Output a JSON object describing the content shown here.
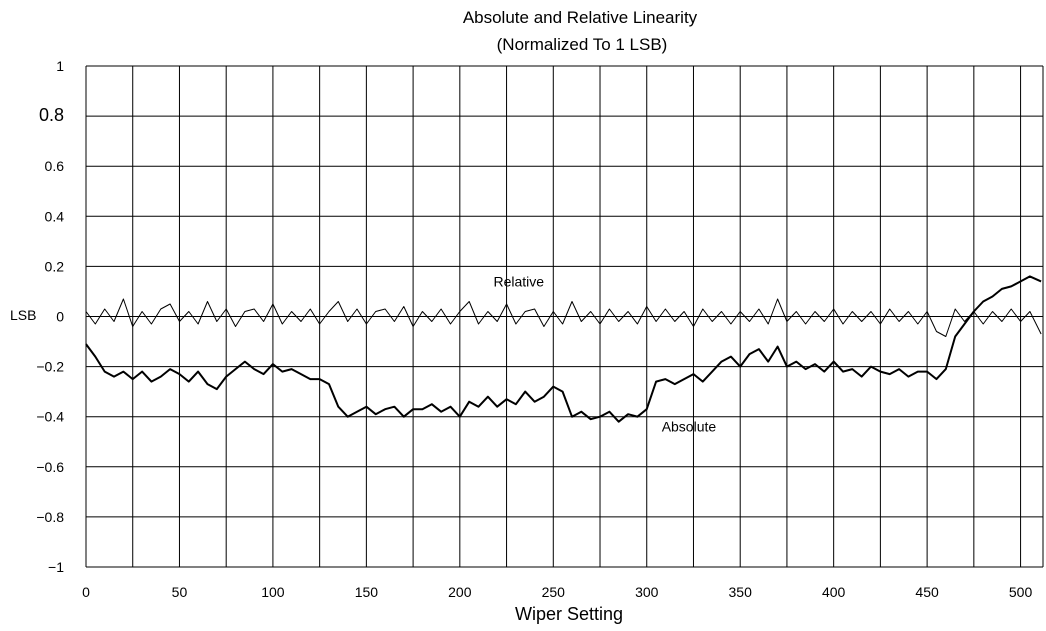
{
  "chart_data": {
    "type": "line",
    "title": "Absolute and Relative Linearity",
    "subtitle": "(Normalized To 1 LSB)",
    "xlabel": "Wiper Setting",
    "ylabel": "LSB",
    "xlim": [
      0,
      512
    ],
    "ylim": [
      -1,
      1
    ],
    "x_ticks": [
      0,
      50,
      100,
      150,
      200,
      250,
      300,
      350,
      400,
      450,
      500
    ],
    "y_ticks": [
      -1,
      -0.8,
      -0.6,
      -0.4,
      -0.2,
      0,
      0.2,
      0.4,
      0.6,
      0.8,
      1
    ],
    "y_tick_labels": [
      "−1",
      "−0.8",
      "−0.6",
      "−0.4",
      "−0.2",
      "0",
      "0.2",
      "0.4",
      "0.6",
      "0.8",
      "1"
    ],
    "x_tick_labels": [
      "0",
      "50",
      "100",
      "150",
      "200",
      "250",
      "300",
      "350",
      "400",
      "450",
      "500"
    ],
    "grid": true,
    "annotations": [
      {
        "text": "Relative",
        "x": 218,
        "y": 0.12
      },
      {
        "text": "Absolute",
        "x": 308,
        "y": -0.46
      }
    ],
    "series": [
      {
        "name": "Absolute",
        "x": [
          0,
          5,
          10,
          15,
          20,
          25,
          30,
          35,
          40,
          45,
          50,
          55,
          60,
          65,
          70,
          75,
          80,
          85,
          90,
          95,
          100,
          105,
          110,
          115,
          120,
          125,
          130,
          135,
          140,
          145,
          150,
          155,
          160,
          165,
          170,
          175,
          180,
          185,
          190,
          195,
          200,
          205,
          210,
          215,
          220,
          225,
          230,
          235,
          240,
          245,
          250,
          255,
          260,
          265,
          270,
          275,
          280,
          285,
          290,
          295,
          300,
          305,
          310,
          315,
          320,
          325,
          330,
          335,
          340,
          345,
          350,
          355,
          360,
          365,
          370,
          375,
          380,
          385,
          390,
          395,
          400,
          405,
          410,
          415,
          420,
          425,
          430,
          435,
          440,
          445,
          450,
          455,
          460,
          465,
          470,
          475,
          480,
          485,
          490,
          495,
          500,
          505,
          511
        ],
        "y": [
          -0.11,
          -0.16,
          -0.22,
          -0.24,
          -0.22,
          -0.25,
          -0.22,
          -0.26,
          -0.24,
          -0.21,
          -0.23,
          -0.26,
          -0.22,
          -0.27,
          -0.29,
          -0.24,
          -0.21,
          -0.18,
          -0.21,
          -0.23,
          -0.19,
          -0.22,
          -0.21,
          -0.23,
          -0.25,
          -0.25,
          -0.27,
          -0.36,
          -0.4,
          -0.38,
          -0.36,
          -0.39,
          -0.37,
          -0.36,
          -0.4,
          -0.37,
          -0.37,
          -0.35,
          -0.38,
          -0.36,
          -0.4,
          -0.34,
          -0.36,
          -0.32,
          -0.36,
          -0.33,
          -0.35,
          -0.3,
          -0.34,
          -0.32,
          -0.28,
          -0.3,
          -0.4,
          -0.38,
          -0.41,
          -0.4,
          -0.38,
          -0.42,
          -0.39,
          -0.4,
          -0.37,
          -0.26,
          -0.25,
          -0.27,
          -0.25,
          -0.23,
          -0.26,
          -0.22,
          -0.18,
          -0.16,
          -0.2,
          -0.15,
          -0.13,
          -0.18,
          -0.12,
          -0.2,
          -0.18,
          -0.21,
          -0.19,
          -0.22,
          -0.18,
          -0.22,
          -0.21,
          -0.24,
          -0.2,
          -0.22,
          -0.23,
          -0.21,
          -0.24,
          -0.22,
          -0.22,
          -0.25,
          -0.21,
          -0.08,
          -0.03,
          0.02,
          0.06,
          0.08,
          0.11,
          0.12,
          0.14,
          0.16,
          0.14
        ]
      },
      {
        "name": "Relative",
        "x": [
          0,
          5,
          10,
          15,
          20,
          25,
          30,
          35,
          40,
          45,
          50,
          55,
          60,
          65,
          70,
          75,
          80,
          85,
          90,
          95,
          100,
          105,
          110,
          115,
          120,
          125,
          130,
          135,
          140,
          145,
          150,
          155,
          160,
          165,
          170,
          175,
          180,
          185,
          190,
          195,
          200,
          205,
          210,
          215,
          220,
          225,
          230,
          235,
          240,
          245,
          250,
          255,
          260,
          265,
          270,
          275,
          280,
          285,
          290,
          295,
          300,
          305,
          310,
          315,
          320,
          325,
          330,
          335,
          340,
          345,
          350,
          355,
          360,
          365,
          370,
          375,
          380,
          385,
          390,
          395,
          400,
          405,
          410,
          415,
          420,
          425,
          430,
          435,
          440,
          445,
          450,
          455,
          460,
          465,
          470,
          475,
          480,
          485,
          490,
          495,
          500,
          505,
          511
        ],
        "y": [
          0.02,
          -0.03,
          0.03,
          -0.02,
          0.07,
          -0.04,
          0.02,
          -0.03,
          0.03,
          0.05,
          -0.02,
          0.02,
          -0.03,
          0.06,
          -0.02,
          0.03,
          -0.04,
          0.02,
          0.03,
          -0.02,
          0.05,
          -0.03,
          0.02,
          -0.02,
          0.03,
          -0.03,
          0.02,
          0.06,
          -0.02,
          0.03,
          -0.03,
          0.02,
          0.03,
          -0.02,
          0.04,
          -0.04,
          0.02,
          -0.02,
          0.03,
          -0.03,
          0.02,
          0.06,
          -0.03,
          0.02,
          -0.02,
          0.05,
          -0.03,
          0.02,
          0.03,
          -0.04,
          0.02,
          -0.03,
          0.06,
          -0.02,
          0.02,
          -0.03,
          0.03,
          -0.02,
          0.02,
          -0.03,
          0.04,
          -0.02,
          0.03,
          -0.02,
          0.02,
          -0.04,
          0.03,
          -0.02,
          0.02,
          -0.03,
          0.02,
          -0.02,
          0.03,
          -0.03,
          0.07,
          -0.02,
          0.02,
          -0.03,
          0.02,
          -0.02,
          0.03,
          -0.03,
          0.02,
          -0.02,
          0.02,
          -0.03,
          0.03,
          -0.02,
          0.02,
          -0.03,
          0.02,
          -0.06,
          -0.08,
          0.03,
          -0.02,
          0.02,
          -0.03,
          0.02,
          -0.02,
          0.03,
          -0.02,
          0.02,
          -0.07
        ]
      }
    ]
  }
}
